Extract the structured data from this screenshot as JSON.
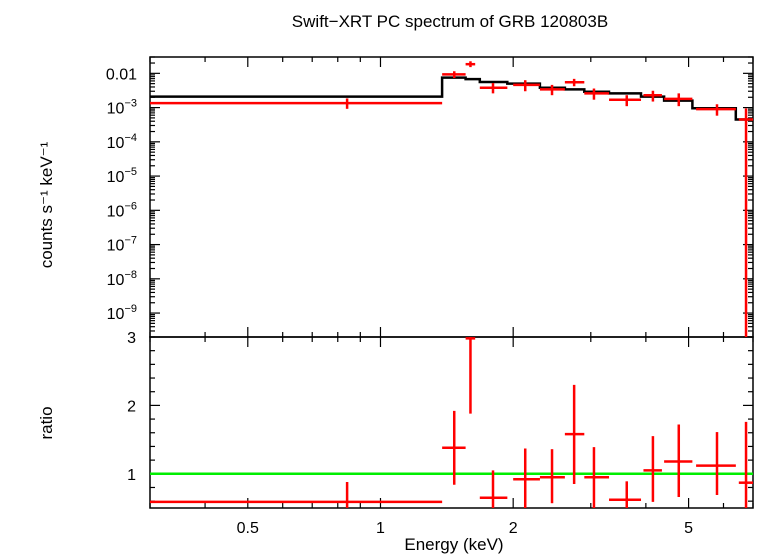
{
  "chart_data": [
    {
      "type": "scatter",
      "title": "Swift−XRT PC spectrum of GRB 120803B",
      "ylabel": "counts s⁻¹ keV⁻¹",
      "yscale": "log",
      "xscale": "log",
      "xlim": [
        0.3,
        7.0
      ],
      "ylim": [
        2e-10,
        0.03
      ],
      "yticks": [
        {
          "value": 0.01,
          "label": "0.01"
        },
        {
          "value": 0.001,
          "base": "10",
          "exp": "−3"
        },
        {
          "value": 0.0001,
          "base": "10",
          "exp": "−4"
        },
        {
          "value": 1e-05,
          "base": "10",
          "exp": "−5"
        },
        {
          "value": 1e-06,
          "base": "10",
          "exp": "−6"
        },
        {
          "value": 1e-07,
          "base": "10",
          "exp": "−7"
        },
        {
          "value": 1e-08,
          "base": "10",
          "exp": "−8"
        },
        {
          "value": 1e-09,
          "base": "10",
          "exp": "−9"
        }
      ],
      "series": [
        {
          "kind": "data",
          "color": "#ff0000",
          "points": [
            {
              "x": 0.84,
              "xlo": 0.3,
              "xhi": 1.38,
              "y": 0.00135,
              "ylo": 0.00092,
              "yhi": 0.00185
            },
            {
              "x": 1.47,
              "xlo": 1.38,
              "xhi": 1.56,
              "y": 0.0093,
              "ylo": 0.0073,
              "yhi": 0.0115
            },
            {
              "x": 1.6,
              "xlo": 1.56,
              "xhi": 1.64,
              "y": 0.0185,
              "ylo": 0.0152,
              "yhi": 0.0225
            },
            {
              "x": 1.8,
              "xlo": 1.68,
              "xhi": 1.94,
              "y": 0.0038,
              "ylo": 0.0026,
              "yhi": 0.0052
            },
            {
              "x": 2.13,
              "xlo": 2.0,
              "xhi": 2.3,
              "y": 0.0046,
              "ylo": 0.003,
              "yhi": 0.0063
            },
            {
              "x": 2.45,
              "xlo": 2.3,
              "xhi": 2.62,
              "y": 0.0034,
              "ylo": 0.0023,
              "yhi": 0.0046
            },
            {
              "x": 2.75,
              "xlo": 2.62,
              "xhi": 2.9,
              "y": 0.0055,
              "ylo": 0.0042,
              "yhi": 0.0069
            },
            {
              "x": 3.05,
              "xlo": 2.9,
              "xhi": 3.3,
              "y": 0.0026,
              "ylo": 0.0017,
              "yhi": 0.0036
            },
            {
              "x": 3.62,
              "xlo": 3.3,
              "xhi": 3.9,
              "y": 0.0017,
              "ylo": 0.0011,
              "yhi": 0.0023
            },
            {
              "x": 4.15,
              "xlo": 3.95,
              "xhi": 4.35,
              "y": 0.0023,
              "ylo": 0.0015,
              "yhi": 0.0031
            },
            {
              "x": 4.75,
              "xlo": 4.4,
              "xhi": 5.1,
              "y": 0.0018,
              "ylo": 0.0011,
              "yhi": 0.0026
            },
            {
              "x": 5.8,
              "xlo": 5.2,
              "xhi": 6.4,
              "y": 0.0009,
              "ylo": 0.00058,
              "yhi": 0.00125
            },
            {
              "x": 6.75,
              "xlo": 6.5,
              "xhi": 7.0,
              "y": 0.00045,
              "ylo": 2e-10,
              "yhi": 0.00095
            }
          ]
        },
        {
          "kind": "model",
          "color": "#000000",
          "steps": [
            {
              "x0": 0.3,
              "x1": 1.38,
              "y": 0.0021
            },
            {
              "x0": 1.38,
              "x1": 1.56,
              "y": 0.0075
            },
            {
              "x0": 1.56,
              "x1": 1.68,
              "y": 0.0068
            },
            {
              "x0": 1.68,
              "x1": 1.94,
              "y": 0.0056
            },
            {
              "x0": 1.94,
              "x1": 2.3,
              "y": 0.005
            },
            {
              "x0": 2.3,
              "x1": 2.62,
              "y": 0.0038
            },
            {
              "x0": 2.62,
              "x1": 2.9,
              "y": 0.0034
            },
            {
              "x0": 2.9,
              "x1": 3.3,
              "y": 0.0029
            },
            {
              "x0": 3.3,
              "x1": 3.9,
              "y": 0.0026
            },
            {
              "x0": 3.9,
              "x1": 4.4,
              "y": 0.0021
            },
            {
              "x0": 4.4,
              "x1": 5.1,
              "y": 0.0016
            },
            {
              "x0": 5.1,
              "x1": 6.4,
              "y": 0.00095
            },
            {
              "x0": 6.4,
              "x1": 7.0,
              "y": 0.00045
            }
          ]
        }
      ]
    },
    {
      "type": "scatter",
      "xlabel": "Energy (keV)",
      "ylabel": "ratio",
      "xscale": "log",
      "xlim": [
        0.3,
        7.0
      ],
      "ylim": [
        0.5,
        3.0
      ],
      "xticks": [
        {
          "value": 0.5,
          "label": "0.5"
        },
        {
          "value": 1,
          "label": "1"
        },
        {
          "value": 2,
          "label": "2"
        },
        {
          "value": 5,
          "label": "5"
        }
      ],
      "yticks": [
        {
          "value": 1,
          "label": "1"
        },
        {
          "value": 2,
          "label": "2"
        },
        {
          "value": 3,
          "label": "3"
        }
      ],
      "reference_line": {
        "y": 1,
        "color": "#00ee00"
      },
      "series": [
        {
          "kind": "ratio",
          "color": "#ff0000",
          "points": [
            {
              "x": 0.84,
              "xlo": 0.3,
              "xhi": 1.38,
              "y": 0.59,
              "ylo": 0.5,
              "yhi": 0.88
            },
            {
              "x": 1.47,
              "xlo": 1.38,
              "xhi": 1.56,
              "y": 1.38,
              "ylo": 0.84,
              "yhi": 1.92
            },
            {
              "x": 1.6,
              "xlo": 1.56,
              "xhi": 1.64,
              "y": 2.98,
              "ylo": 1.88,
              "yhi": 3.0
            },
            {
              "x": 1.8,
              "xlo": 1.68,
              "xhi": 1.94,
              "y": 0.65,
              "ylo": 0.5,
              "yhi": 1.05
            },
            {
              "x": 2.13,
              "xlo": 2.0,
              "xhi": 2.3,
              "y": 0.92,
              "ylo": 0.5,
              "yhi": 1.37
            },
            {
              "x": 2.45,
              "xlo": 2.3,
              "xhi": 2.62,
              "y": 0.95,
              "ylo": 0.57,
              "yhi": 1.36
            },
            {
              "x": 2.75,
              "xlo": 2.62,
              "xhi": 2.9,
              "y": 1.58,
              "ylo": 0.85,
              "yhi": 2.3
            },
            {
              "x": 3.05,
              "xlo": 2.9,
              "xhi": 3.3,
              "y": 0.95,
              "ylo": 0.5,
              "yhi": 1.39
            },
            {
              "x": 3.62,
              "xlo": 3.3,
              "xhi": 3.9,
              "y": 0.62,
              "ylo": 0.5,
              "yhi": 0.89
            },
            {
              "x": 4.15,
              "xlo": 3.95,
              "xhi": 4.35,
              "y": 1.05,
              "ylo": 0.59,
              "yhi": 1.55
            },
            {
              "x": 4.75,
              "xlo": 4.4,
              "xhi": 5.1,
              "y": 1.18,
              "ylo": 0.66,
              "yhi": 1.72
            },
            {
              "x": 5.8,
              "xlo": 5.2,
              "xhi": 6.4,
              "y": 1.12,
              "ylo": 0.69,
              "yhi": 1.61
            },
            {
              "x": 6.75,
              "xlo": 6.5,
              "xhi": 7.0,
              "y": 0.87,
              "ylo": 0.5,
              "yhi": 1.76
            }
          ]
        }
      ]
    }
  ]
}
